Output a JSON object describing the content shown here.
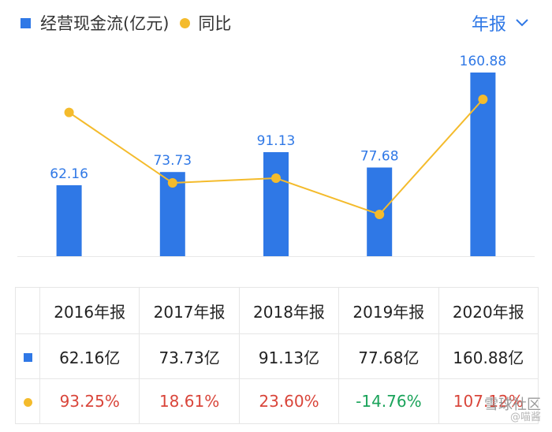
{
  "legend": {
    "bar_label": "经营现金流(亿元)",
    "line_label": "同比"
  },
  "period_selector": {
    "label": "年报"
  },
  "chart_data": {
    "type": "bar",
    "categories": [
      "2016年报",
      "2017年报",
      "2018年报",
      "2019年报",
      "2020年报"
    ],
    "series": [
      {
        "name": "经营现金流(亿元)",
        "type": "bar",
        "values": [
          62.16,
          73.73,
          91.13,
          77.68,
          160.88
        ],
        "labels": [
          "62.16",
          "73.73",
          "91.13",
          "77.68",
          "160.88"
        ],
        "color": "#2f78e6"
      },
      {
        "name": "同比",
        "type": "line",
        "values": [
          93.25,
          18.61,
          23.6,
          -14.76,
          107.12
        ],
        "color": "#f4bb2c"
      }
    ],
    "legend": "top-left",
    "grid": false
  },
  "table": {
    "headers": [
      "2016年报",
      "2017年报",
      "2018年报",
      "2019年报",
      "2020年报"
    ],
    "bar_row": [
      "62.16亿",
      "73.73亿",
      "91.13亿",
      "77.68亿",
      "160.88亿"
    ],
    "line_row": [
      "93.25%",
      "18.61%",
      "23.60%",
      "-14.76%",
      "107.12%"
    ]
  },
  "watermark": {
    "line1": "雪球社区",
    "line2": "@喵酱"
  },
  "colors": {
    "bar": "#2f78e6",
    "line": "#f4bb2c",
    "positive": "#d9453a",
    "negative": "#1aa35a"
  }
}
